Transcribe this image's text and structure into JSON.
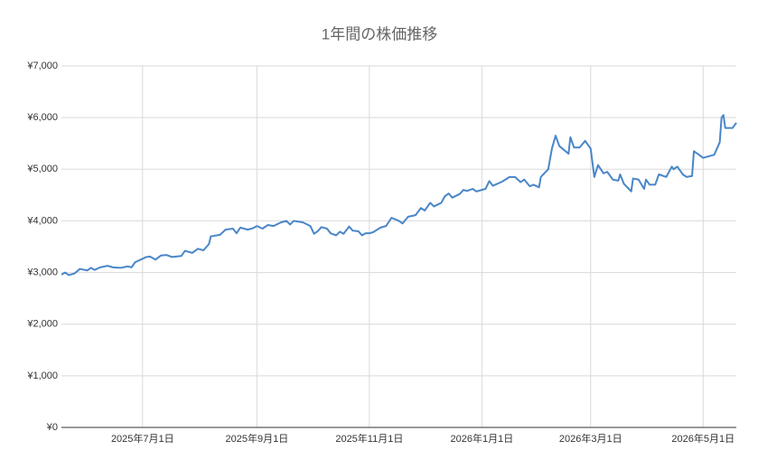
{
  "chart_data": {
    "type": "line",
    "title": "1年間の株価推移",
    "x": [
      "2025-05-18",
      "2025-05-20",
      "2025-05-22",
      "2025-05-25",
      "2025-05-28",
      "2025-06-01",
      "2025-06-03",
      "2025-06-05",
      "2025-06-08",
      "2025-06-12",
      "2025-06-15",
      "2025-06-19",
      "2025-06-23",
      "2025-06-25",
      "2025-06-27",
      "2025-07-03",
      "2025-07-05",
      "2025-07-08",
      "2025-07-11",
      "2025-07-14",
      "2025-07-17",
      "2025-07-22",
      "2025-07-24",
      "2025-07-28",
      "2025-07-31",
      "2025-08-03",
      "2025-08-06",
      "2025-08-07",
      "2025-08-12",
      "2025-08-15",
      "2025-08-19",
      "2025-08-21",
      "2025-08-23",
      "2025-08-27",
      "2025-08-30",
      "2025-09-01",
      "2025-09-04",
      "2025-09-07",
      "2025-09-10",
      "2025-09-14",
      "2025-09-17",
      "2025-09-19",
      "2025-09-21",
      "2025-09-26",
      "2025-09-30",
      "2025-10-02",
      "2025-10-04",
      "2025-10-06",
      "2025-10-09",
      "2025-10-11",
      "2025-10-14",
      "2025-10-16",
      "2025-10-18",
      "2025-10-21",
      "2025-10-23",
      "2025-10-26",
      "2025-10-28",
      "2025-10-30",
      "2025-11-01",
      "2025-11-03",
      "2025-11-07",
      "2025-11-10",
      "2025-11-13",
      "2025-11-17",
      "2025-11-19",
      "2025-11-22",
      "2025-11-26",
      "2025-11-29",
      "2025-12-01",
      "2025-12-04",
      "2025-12-06",
      "2025-12-10",
      "2025-12-12",
      "2025-12-14",
      "2025-12-16",
      "2025-12-20",
      "2025-12-22",
      "2025-12-24",
      "2025-12-27",
      "2025-12-29",
      "2026-01-03",
      "2026-01-05",
      "2026-01-07",
      "2026-01-12",
      "2026-01-16",
      "2026-01-19",
      "2026-01-22",
      "2026-01-24",
      "2026-01-27",
      "2026-01-29",
      "2026-02-01",
      "2026-02-02",
      "2026-02-06",
      "2026-02-08",
      "2026-02-10",
      "2026-02-12",
      "2026-02-17",
      "2026-02-18",
      "2026-02-20",
      "2026-02-23",
      "2026-02-26",
      "2026-03-01",
      "2026-03-03",
      "2026-03-05",
      "2026-03-08",
      "2026-03-10",
      "2026-03-13",
      "2026-03-16",
      "2026-03-17",
      "2026-03-19",
      "2026-03-23",
      "2026-03-24",
      "2026-03-27",
      "2026-03-30",
      "2026-03-31",
      "2026-04-02",
      "2026-04-05",
      "2026-04-07",
      "2026-04-11",
      "2026-04-14",
      "2026-04-15",
      "2026-04-17",
      "2026-04-20",
      "2026-04-22",
      "2026-04-25",
      "2026-04-26",
      "2026-04-28",
      "2026-05-01",
      "2026-05-07",
      "2026-05-10",
      "2026-05-11",
      "2026-05-12",
      "2026-05-13",
      "2026-05-17",
      "2026-05-19"
    ],
    "values": [
      2960,
      3000,
      2950,
      2980,
      3070,
      3040,
      3090,
      3050,
      3100,
      3130,
      3100,
      3090,
      3120,
      3100,
      3200,
      3300,
      3310,
      3250,
      3330,
      3340,
      3300,
      3320,
      3420,
      3380,
      3460,
      3430,
      3550,
      3700,
      3730,
      3830,
      3850,
      3760,
      3870,
      3830,
      3860,
      3900,
      3850,
      3920,
      3900,
      3970,
      4000,
      3930,
      4000,
      3970,
      3900,
      3750,
      3800,
      3880,
      3850,
      3760,
      3720,
      3790,
      3750,
      3890,
      3810,
      3800,
      3720,
      3760,
      3760,
      3780,
      3870,
      3900,
      4060,
      4000,
      3950,
      4080,
      4110,
      4250,
      4200,
      4350,
      4280,
      4350,
      4480,
      4530,
      4450,
      4520,
      4600,
      4580,
      4620,
      4570,
      4620,
      4770,
      4680,
      4760,
      4850,
      4850,
      4750,
      4800,
      4670,
      4700,
      4650,
      4850,
      5000,
      5400,
      5650,
      5450,
      5300,
      5620,
      5420,
      5420,
      5550,
      5400,
      4850,
      5080,
      4920,
      4950,
      4800,
      4780,
      4900,
      4720,
      4570,
      4820,
      4800,
      4620,
      4800,
      4700,
      4700,
      4900,
      4850,
      5050,
      5000,
      5050,
      4900,
      4850,
      4870,
      5350,
      5300,
      5220,
      5280,
      5520,
      6000,
      6050,
      5800,
      5800,
      5900
    ],
    "color": "#4a86c8",
    "xlim": [
      "2025-05-18",
      "2026-05-19"
    ],
    "xticks": [
      {
        "value": "2025-07-01",
        "label": "2025年7月1日"
      },
      {
        "value": "2025-09-01",
        "label": "2025年9月1日"
      },
      {
        "value": "2025-11-01",
        "label": "2025年11月1日"
      },
      {
        "value": "2026-01-01",
        "label": "2026年1月1日"
      },
      {
        "value": "2026-03-01",
        "label": "2026年3月1日"
      },
      {
        "value": "2026-05-01",
        "label": "2026年5月1日"
      }
    ],
    "ylim": [
      0,
      7000
    ],
    "yticks": [
      {
        "value": 0,
        "label": "¥0"
      },
      {
        "value": 1000,
        "label": "¥1,000"
      },
      {
        "value": 2000,
        "label": "¥2,000"
      },
      {
        "value": 3000,
        "label": "¥3,000"
      },
      {
        "value": 4000,
        "label": "¥4,000"
      },
      {
        "value": 5000,
        "label": "¥5,000"
      },
      {
        "value": 6000,
        "label": "¥6,000"
      },
      {
        "value": 7000,
        "label": "¥7,000"
      }
    ],
    "grid": true
  }
}
